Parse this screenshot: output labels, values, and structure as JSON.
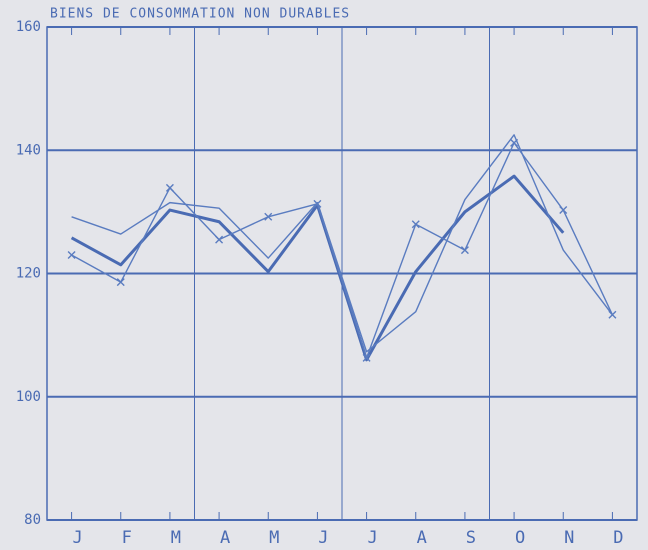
{
  "chart_data": {
    "type": "line",
    "title": "BIENS DE CONSOMMATION NON DURABLES",
    "categories": [
      "J",
      "F",
      "M",
      "A",
      "M",
      "J",
      "J",
      "A",
      "S",
      "O",
      "N",
      "D"
    ],
    "series": [
      {
        "color": "#4a6bb3",
        "line_width": 3,
        "marker": null,
        "values": [
          125.8,
          121.4,
          130.3,
          128.4,
          120.3,
          131.1,
          106.0,
          120.3,
          130.0,
          135.8,
          126.6,
          null
        ]
      },
      {
        "color": "#5a7cc0",
        "line_width": 1.4,
        "marker": null,
        "values": [
          129.2,
          126.4,
          131.5,
          130.6,
          122.5,
          131.5,
          107.3,
          113.8,
          132.0,
          142.5,
          123.8,
          113.3
        ]
      },
      {
        "color": "#5a7cc0",
        "line_width": 1.4,
        "marker": "x",
        "values": [
          123.0,
          118.6,
          133.9,
          125.5,
          129.2,
          131.3,
          106.3,
          128.0,
          123.8,
          141.2,
          130.3,
          113.3
        ]
      }
    ],
    "ylim": [
      80,
      160
    ],
    "yticks": [
      80,
      100,
      120,
      140,
      160
    ],
    "grid": true
  }
}
